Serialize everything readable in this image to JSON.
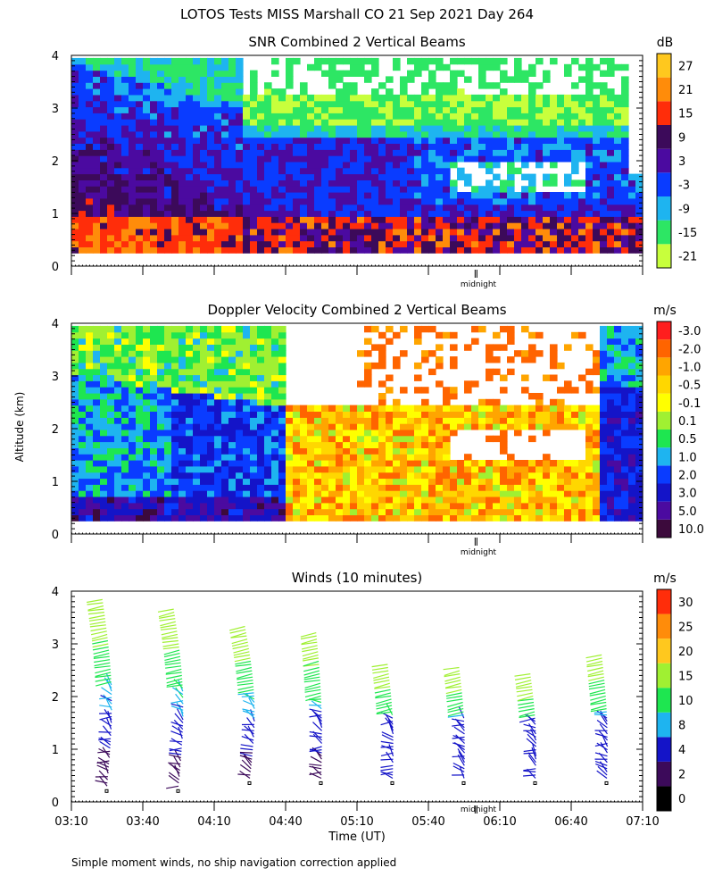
{
  "figure_title": "LOTOS Tests MISS Marshall CO  21 Sep 2021 Day 264",
  "shared": {
    "ylabel": "Altitude (km)",
    "xlabel": "Time (UT)",
    "midnight_label": "midnight",
    "footnote": "Simple moment winds, no ship navigation correction applied"
  },
  "chart_data": [
    {
      "type": "heatmap",
      "title": "SNR Combined 2 Vertical Beams",
      "ylim": [
        0,
        4
      ],
      "yticks": [
        "0",
        "1",
        "2",
        "3",
        "4"
      ],
      "x_range_utc": [
        "03:10",
        "07:10"
      ],
      "data_altitude_range_km": [
        0.25,
        3.95
      ],
      "colorbar": {
        "unit": "dB",
        "colors": [
          "#c8ff3c",
          "#2de664",
          "#1eb4f0",
          "#0a3cff",
          "#4b0aa0",
          "#3c0a5a",
          "#ff2d0a",
          "#ff8c0a",
          "#ffc81e"
        ],
        "labels": [
          "-21",
          "-15",
          "-9",
          "-3",
          "3",
          "9",
          "15",
          "21",
          "27"
        ]
      }
    },
    {
      "type": "heatmap",
      "title": "Doppler Velocity Combined 2 Vertical Beams",
      "ylim": [
        0,
        4
      ],
      "yticks": [
        "0",
        "1",
        "2",
        "3",
        "4"
      ],
      "x_range_utc": [
        "03:10",
        "07:10"
      ],
      "data_altitude_range_km": [
        0.25,
        3.95
      ],
      "colorbar": {
        "unit": "m/s",
        "colors": [
          "#3c0a3c",
          "#4b0aa0",
          "#1414c8",
          "#0a3cff",
          "#1eb4f0",
          "#1ee650",
          "#a0f032",
          "#ffff00",
          "#ffd700",
          "#ffa500",
          "#ff6400",
          "#ff1e1e"
        ],
        "labels": [
          "10.0",
          "5.0",
          "3.0",
          "2.0",
          "1.0",
          "0.5",
          "0.1",
          "-0.1",
          "-0.5",
          "-1.0",
          "-2.0",
          "-3.0"
        ]
      }
    },
    {
      "type": "wind_barbs",
      "title": "Winds (10 minutes)",
      "ylim": [
        0,
        4
      ],
      "yticks": [
        "0",
        "1",
        "2",
        "3",
        "4"
      ],
      "xticks": [
        "03:10",
        "03:40",
        "04:10",
        "04:40",
        "05:10",
        "05:40",
        "06:10",
        "06:40",
        "07:10"
      ],
      "profile_times_utc": [
        "03:25",
        "03:55",
        "04:25",
        "04:55",
        "05:25",
        "05:55",
        "06:25",
        "06:55"
      ],
      "profile_top_km": [
        3.9,
        3.7,
        3.35,
        3.25,
        2.65,
        2.6,
        2.45,
        2.8
      ],
      "colorbar": {
        "unit": "m/s",
        "colors": [
          "#000000",
          "#3c0a5a",
          "#1414c8",
          "#1eb4f0",
          "#1ee650",
          "#a0f032",
          "#ffc81e",
          "#ff8c0a",
          "#ff2d0a"
        ],
        "labels": [
          "0",
          "2",
          "4",
          "8",
          "10",
          "15",
          "20",
          "25",
          "30"
        ]
      }
    }
  ]
}
